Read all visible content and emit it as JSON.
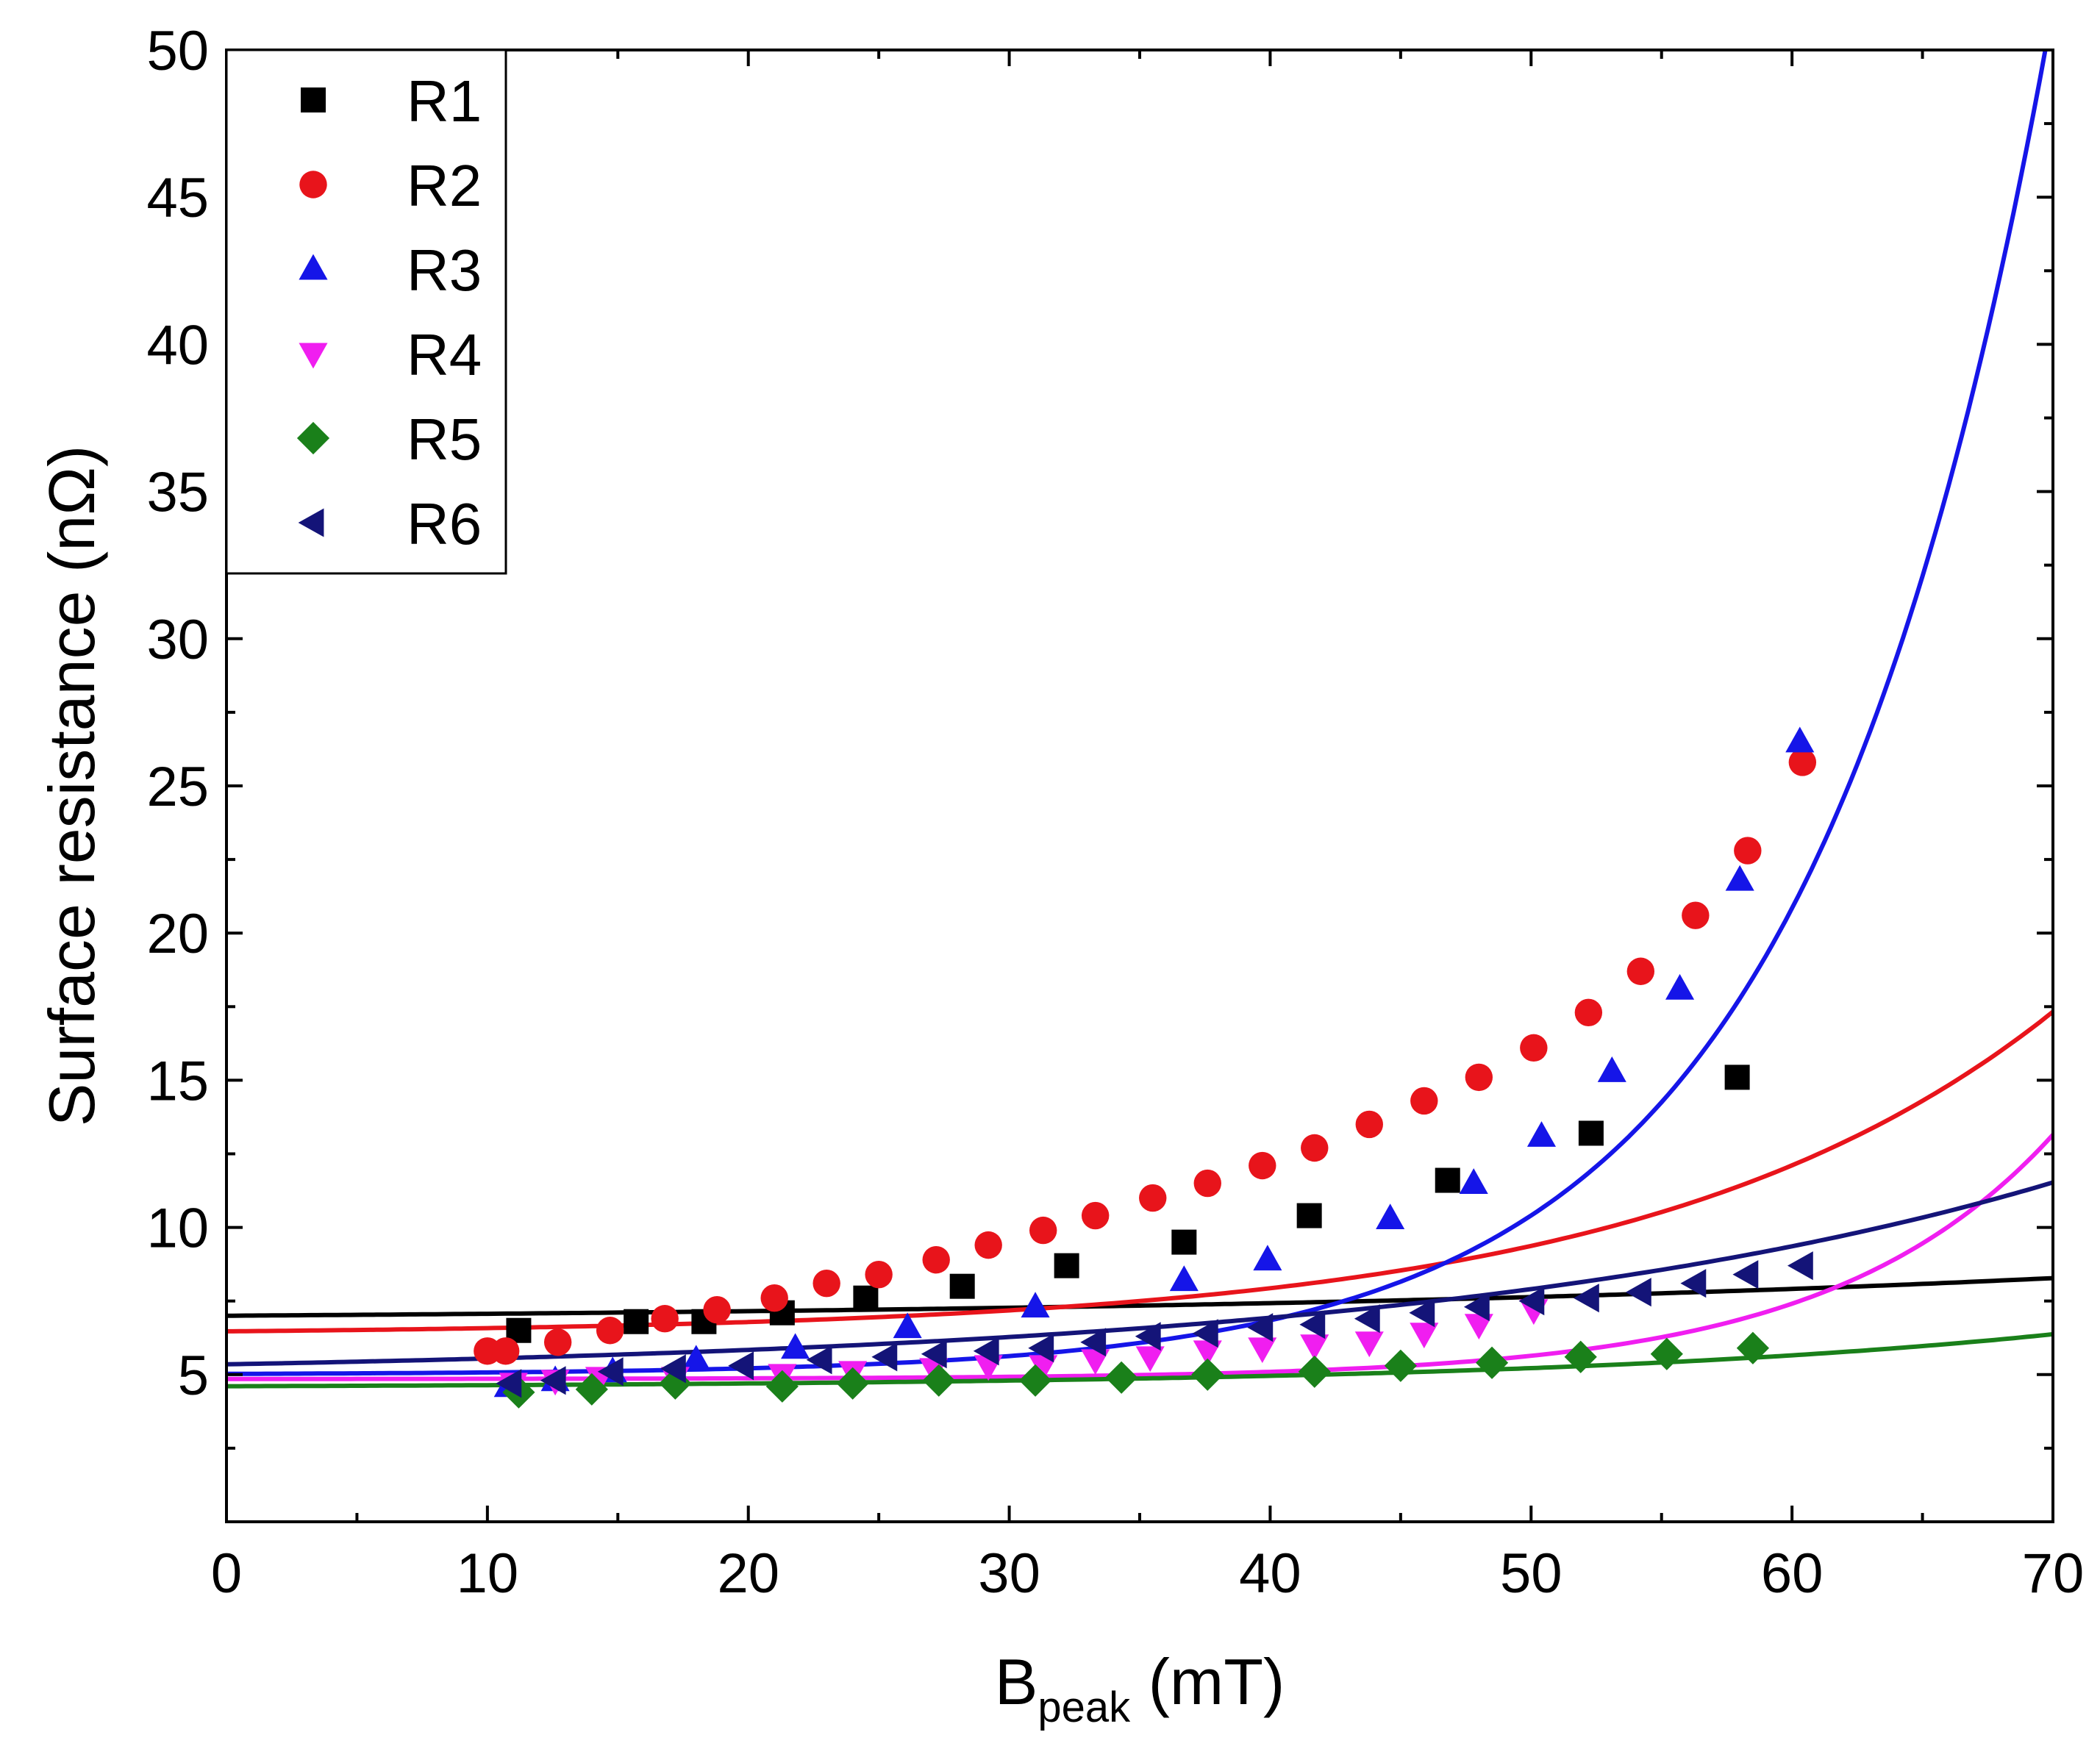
{
  "chart_data": {
    "type": "scatter",
    "title": "",
    "xlabel": "B",
    "xlabel_subscript": "peak",
    "xlabel_suffix": " (mT)",
    "ylabel": "Surface resistance (nΩ)",
    "xlim": [
      0,
      70
    ],
    "ylim": [
      0,
      50
    ],
    "x_ticks": [
      "0",
      "10",
      "20",
      "30",
      "40",
      "50",
      "60",
      "70"
    ],
    "y_ticks": [
      "5",
      "10",
      "15",
      "20",
      "25",
      "30",
      "35",
      "40",
      "45",
      "50"
    ],
    "grid": false,
    "legend_position": "top-left",
    "series": [
      {
        "name": "R1",
        "color": "#000000",
        "marker": "square",
        "points": [
          [
            11.2,
            6.5
          ],
          [
            15.7,
            6.8
          ],
          [
            18.3,
            6.8
          ],
          [
            21.3,
            7.1
          ],
          [
            24.5,
            7.6
          ],
          [
            28.2,
            8.0
          ],
          [
            32.2,
            8.7
          ],
          [
            36.7,
            9.5
          ],
          [
            41.5,
            10.4
          ],
          [
            46.8,
            11.6
          ],
          [
            52.3,
            13.2
          ],
          [
            57.9,
            15.1
          ]
        ],
        "fit": {
          "a": 6.8,
          "b": 0.2,
          "c": 35
        }
      },
      {
        "name": "R2",
        "color": "#e8141b",
        "marker": "circle",
        "points": [
          [
            10.0,
            5.8
          ],
          [
            10.7,
            5.8
          ],
          [
            12.7,
            6.1
          ],
          [
            14.7,
            6.5
          ],
          [
            16.8,
            6.9
          ],
          [
            18.8,
            7.2
          ],
          [
            21.0,
            7.6
          ],
          [
            23.0,
            8.1
          ],
          [
            25.0,
            8.4
          ],
          [
            27.2,
            8.9
          ],
          [
            29.2,
            9.4
          ],
          [
            31.3,
            9.9
          ],
          [
            33.3,
            10.4
          ],
          [
            35.5,
            11.0
          ],
          [
            37.6,
            11.5
          ],
          [
            39.7,
            12.1
          ],
          [
            41.7,
            12.7
          ],
          [
            43.8,
            13.5
          ],
          [
            45.9,
            14.3
          ],
          [
            48.0,
            15.1
          ],
          [
            50.1,
            16.1
          ],
          [
            52.2,
            17.3
          ],
          [
            54.2,
            18.7
          ],
          [
            56.3,
            20.6
          ],
          [
            58.3,
            22.8
          ],
          [
            60.4,
            25.8
          ]
        ],
        "fit": {
          "a": 6.35,
          "b": 0.12,
          "c": 15.5
        }
      },
      {
        "name": "R3",
        "color": "#1515e8",
        "marker": "triangle-up",
        "points": [
          [
            10.8,
            4.6
          ],
          [
            12.6,
            4.8
          ],
          [
            14.8,
            5.1
          ],
          [
            18.0,
            5.5
          ],
          [
            21.8,
            5.9
          ],
          [
            26.1,
            6.6
          ],
          [
            31.0,
            7.3
          ],
          [
            36.7,
            8.2
          ],
          [
            39.9,
            8.9
          ],
          [
            44.6,
            10.3
          ],
          [
            47.8,
            11.5
          ],
          [
            50.4,
            13.1
          ],
          [
            53.1,
            15.3
          ],
          [
            55.7,
            18.1
          ],
          [
            58.0,
            21.8
          ],
          [
            60.3,
            26.5
          ]
        ],
        "fit": {
          "a": 5.0,
          "b": 0.025,
          "c": 9.3
        }
      },
      {
        "name": "R4",
        "color": "#f01ef0",
        "marker": "triangle-down",
        "points": [
          [
            11.0,
            4.7
          ],
          [
            12.6,
            4.8
          ],
          [
            14.3,
            4.9
          ],
          [
            17.2,
            4.9
          ],
          [
            21.3,
            5.0
          ],
          [
            24.0,
            5.1
          ],
          [
            27.1,
            5.2
          ],
          [
            29.2,
            5.3
          ],
          [
            31.3,
            5.3
          ],
          [
            33.3,
            5.5
          ],
          [
            35.4,
            5.6
          ],
          [
            37.6,
            5.8
          ],
          [
            39.7,
            5.9
          ],
          [
            41.7,
            6.0
          ],
          [
            43.8,
            6.1
          ],
          [
            45.9,
            6.4
          ],
          [
            48.0,
            6.7
          ],
          [
            50.1,
            7.2
          ]
        ],
        "fit": {
          "a": 4.85,
          "b": 0.0022,
          "c": 8.5
        }
      },
      {
        "name": "R5",
        "color": "#1a801a",
        "marker": "diamond",
        "points": [
          [
            11.2,
            4.4
          ],
          [
            14.0,
            4.5
          ],
          [
            17.2,
            4.7
          ],
          [
            21.3,
            4.6
          ],
          [
            24.0,
            4.7
          ],
          [
            27.3,
            4.8
          ],
          [
            31.0,
            4.8
          ],
          [
            34.3,
            4.9
          ],
          [
            37.6,
            5.0
          ],
          [
            41.7,
            5.1
          ],
          [
            45.0,
            5.3
          ],
          [
            48.5,
            5.4
          ],
          [
            51.9,
            5.6
          ],
          [
            55.2,
            5.7
          ],
          [
            58.5,
            5.9
          ]
        ],
        "fit": {
          "a": 4.55,
          "b": 0.055,
          "c": 20
        }
      },
      {
        "name": "R6",
        "color": "#141478",
        "marker": "triangle-left",
        "points": [
          [
            10.9,
            4.7
          ],
          [
            12.6,
            4.8
          ],
          [
            14.8,
            5.1
          ],
          [
            17.2,
            5.2
          ],
          [
            19.8,
            5.3
          ],
          [
            22.8,
            5.5
          ],
          [
            25.3,
            5.6
          ],
          [
            27.2,
            5.7
          ],
          [
            29.2,
            5.8
          ],
          [
            31.3,
            5.9
          ],
          [
            33.3,
            6.1
          ],
          [
            35.4,
            6.3
          ],
          [
            37.6,
            6.4
          ],
          [
            39.7,
            6.6
          ],
          [
            41.7,
            6.7
          ],
          [
            43.8,
            6.9
          ],
          [
            45.9,
            7.1
          ],
          [
            48.0,
            7.3
          ],
          [
            50.1,
            7.5
          ],
          [
            52.2,
            7.6
          ],
          [
            54.2,
            7.8
          ],
          [
            56.3,
            8.1
          ],
          [
            58.3,
            8.4
          ],
          [
            60.4,
            8.7
          ]
        ],
        "fit": {
          "a": 4.95,
          "b": 0.4,
          "c": 25
        }
      }
    ]
  }
}
